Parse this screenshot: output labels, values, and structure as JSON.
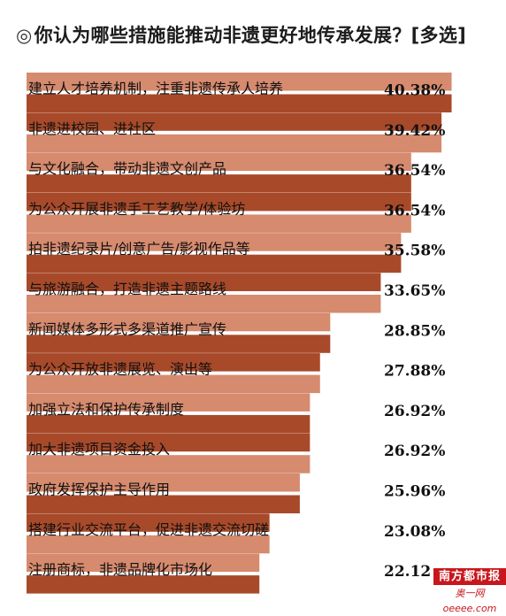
{
  "title": {
    "mark": "◎",
    "text": "你认为哪些措施能推动非遗更好地传承发展？[多选]"
  },
  "logo": {
    "brand": "南方都市报",
    "site": "奥一网 oeeee.com"
  },
  "colors": {
    "light_bar": "#d68a6e",
    "dark_bar": "#a84a2a"
  },
  "chart_data": {
    "type": "bar",
    "orientation": "horizontal",
    "title": "你认为哪些措施能推动非遗更好地传承发展？[多选]",
    "value_unit": "%",
    "categories": [
      "建立人才培养机制，注重非遗传承人培养",
      "非遗进校园、进社区",
      "与文化融合，带动非遗文创产品",
      "为公众开展非遗手工艺教学/体验坊",
      "拍非遗纪录片/创意广告/影视作品等",
      "与旅游融合，打造非遗主题路线",
      "新闻媒体多形式多渠道推广宣传",
      "为公众开放非遗展览、演出等",
      "加强立法和保护传承制度",
      "加大非遗项目资金投入",
      "政府发挥保护主导作用",
      "搭建行业交流平台，促进非遗交流切磋",
      "注册商标，非遗品牌化市场化"
    ],
    "values": [
      40.38,
      39.42,
      36.54,
      36.54,
      35.58,
      33.65,
      28.85,
      27.88,
      26.92,
      26.92,
      25.96,
      23.08,
      22.12
    ],
    "value_labels": [
      "40.38%",
      "39.42%",
      "36.54%",
      "36.54%",
      "35.58%",
      "33.65%",
      "28.85%",
      "27.88%",
      "26.92%",
      "26.92%",
      "25.96%",
      "23.08%",
      "22.12"
    ],
    "bar_style": "paired light/dark bars per item"
  }
}
